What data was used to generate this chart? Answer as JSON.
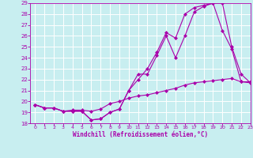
{
  "x": [
    0,
    1,
    2,
    3,
    4,
    5,
    6,
    7,
    8,
    9,
    10,
    11,
    12,
    13,
    14,
    15,
    16,
    17,
    18,
    19,
    20,
    21,
    22,
    23
  ],
  "line1": [
    19.7,
    19.4,
    19.4,
    19.1,
    19.1,
    19.1,
    18.3,
    18.4,
    19.0,
    19.3,
    21.0,
    22.5,
    22.5,
    24.2,
    26.0,
    24.0,
    26.0,
    28.2,
    28.7,
    29.0,
    29.0,
    25.0,
    22.5,
    21.7
  ],
  "line2": [
    19.7,
    19.4,
    19.4,
    19.1,
    19.1,
    19.1,
    18.3,
    18.4,
    19.0,
    19.3,
    21.0,
    22.0,
    23.0,
    24.5,
    26.3,
    25.8,
    28.0,
    28.6,
    28.8,
    29.0,
    26.5,
    24.8,
    21.8,
    21.8
  ],
  "line3": [
    19.7,
    19.4,
    19.4,
    19.1,
    19.2,
    19.2,
    19.1,
    19.3,
    19.8,
    20.0,
    20.3,
    20.5,
    20.6,
    20.8,
    21.0,
    21.2,
    21.5,
    21.7,
    21.8,
    21.9,
    22.0,
    22.1,
    21.8,
    21.7
  ],
  "color": "#aa00aa",
  "bg_color": "#c8eef0",
  "grid_color": "#ffffff",
  "xlabel": "Windchill (Refroidissement éolien,°C)",
  "ylim": [
    18,
    29
  ],
  "xlim": [
    -0.5,
    23
  ],
  "yticks": [
    18,
    19,
    20,
    21,
    22,
    23,
    24,
    25,
    26,
    27,
    28,
    29
  ],
  "xticks": [
    0,
    1,
    2,
    3,
    4,
    5,
    6,
    7,
    8,
    9,
    10,
    11,
    12,
    13,
    14,
    15,
    16,
    17,
    18,
    19,
    20,
    21,
    22,
    23
  ],
  "marker": "D",
  "markersize": 2.0,
  "linewidth": 0.8,
  "tick_fontsize": 5.0,
  "xlabel_fontsize": 5.5
}
